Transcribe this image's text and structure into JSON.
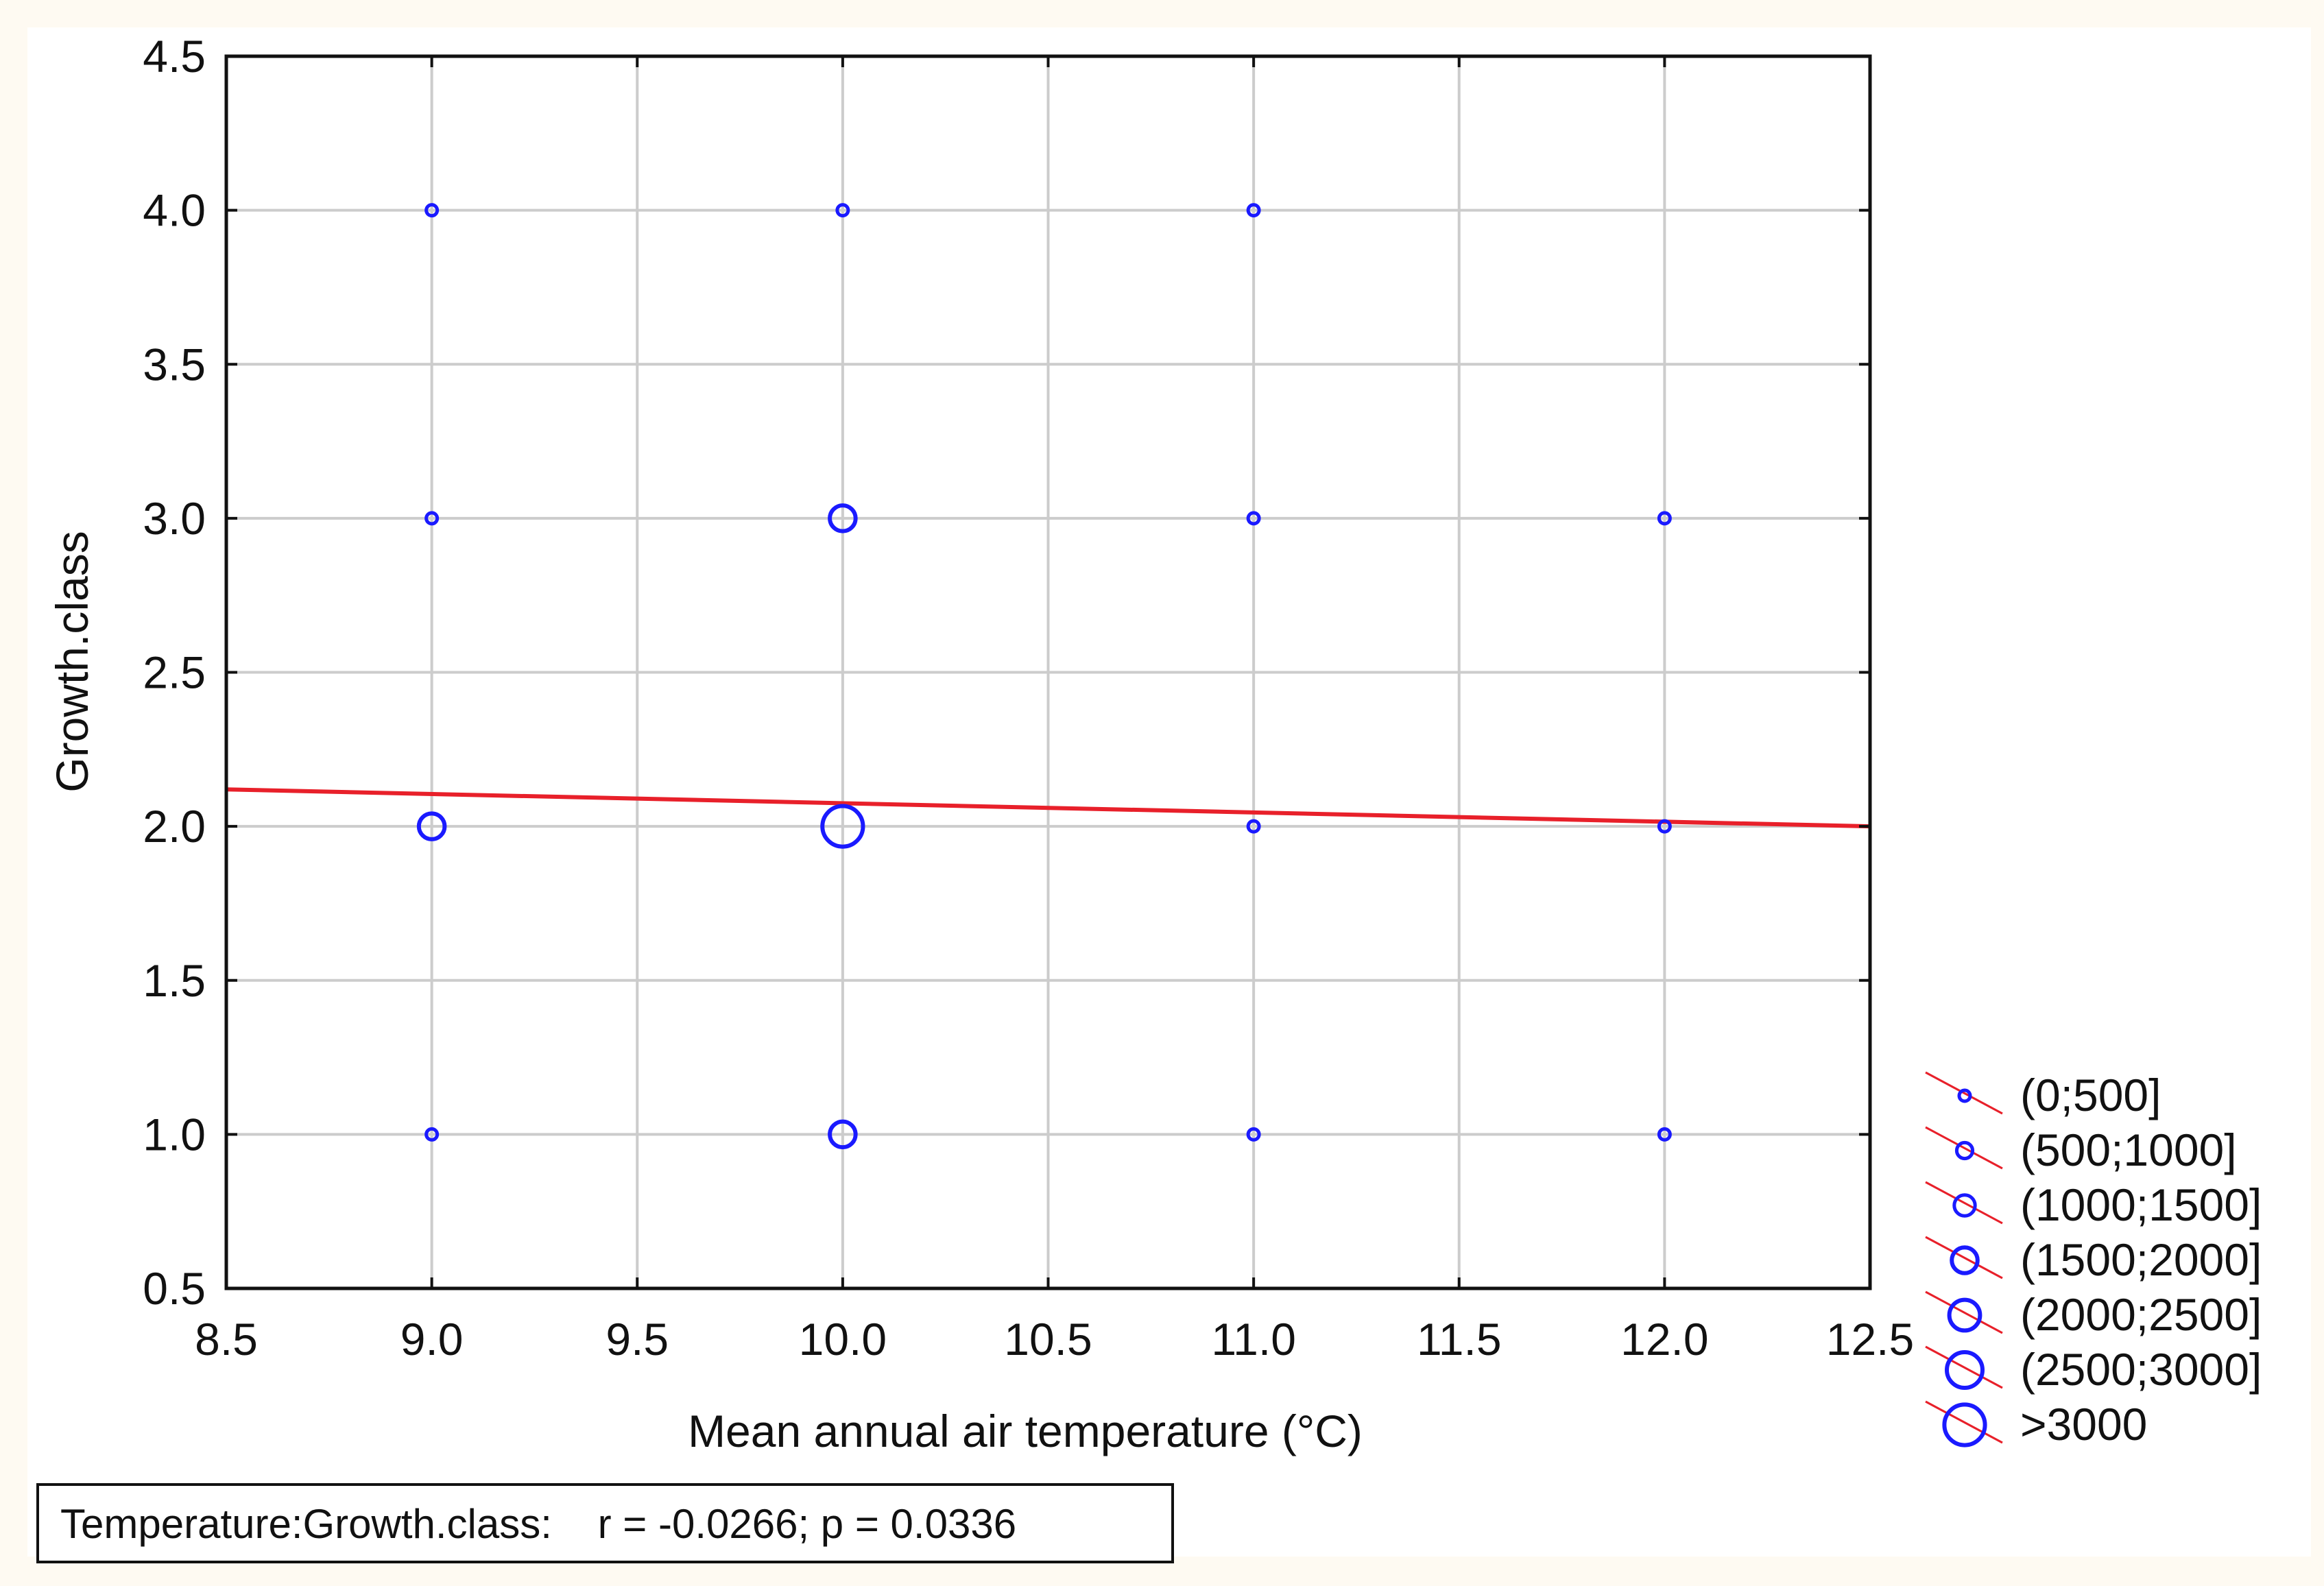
{
  "chart_data": {
    "type": "scatter",
    "title": "",
    "xlabel": "Mean annual air temperature (°C)",
    "ylabel": "Growth.class",
    "xlim": [
      8.5,
      12.5
    ],
    "ylim": [
      0.5,
      4.5
    ],
    "x_ticks": [
      "8.5",
      "9.0",
      "9.5",
      "10.0",
      "10.5",
      "11.0",
      "11.5",
      "12.0",
      "12.5"
    ],
    "y_ticks": [
      "0.5",
      "1.0",
      "1.5",
      "2.0",
      "2.5",
      "3.0",
      "3.5",
      "4.0",
      "4.5"
    ],
    "grid": true,
    "legend_position": "right-bottom",
    "size_classes": [
      "(0;500]",
      "(500;1000]",
      "(1000;1500]",
      "(1500;2000]",
      "(2000;2500]",
      "(2500;3000]",
      ">3000"
    ],
    "points": [
      {
        "x": 9.0,
        "y": 4.0,
        "size_class": 0
      },
      {
        "x": 10.0,
        "y": 4.0,
        "size_class": 0
      },
      {
        "x": 11.0,
        "y": 4.0,
        "size_class": 0
      },
      {
        "x": 9.0,
        "y": 3.0,
        "size_class": 0
      },
      {
        "x": 10.0,
        "y": 3.0,
        "size_class": 3
      },
      {
        "x": 11.0,
        "y": 3.0,
        "size_class": 0
      },
      {
        "x": 12.0,
        "y": 3.0,
        "size_class": 0
      },
      {
        "x": 9.0,
        "y": 2.0,
        "size_class": 3
      },
      {
        "x": 10.0,
        "y": 2.0,
        "size_class": 6
      },
      {
        "x": 11.0,
        "y": 2.0,
        "size_class": 0
      },
      {
        "x": 12.0,
        "y": 2.0,
        "size_class": 0
      },
      {
        "x": 9.0,
        "y": 1.0,
        "size_class": 0
      },
      {
        "x": 10.0,
        "y": 1.0,
        "size_class": 3
      },
      {
        "x": 11.0,
        "y": 1.0,
        "size_class": 0
      },
      {
        "x": 12.0,
        "y": 1.0,
        "size_class": 0
      }
    ],
    "fit_line": {
      "x": [
        8.5,
        12.5
      ],
      "y": [
        2.12,
        2.0
      ]
    },
    "stats_text": "Temperature:Growth.class:    r = -0.0266; p = 0.0336",
    "colors": {
      "points": "#1a1aff",
      "fit_line": "#e8202a",
      "grid": "#cccccc",
      "axis": "#111111"
    }
  }
}
